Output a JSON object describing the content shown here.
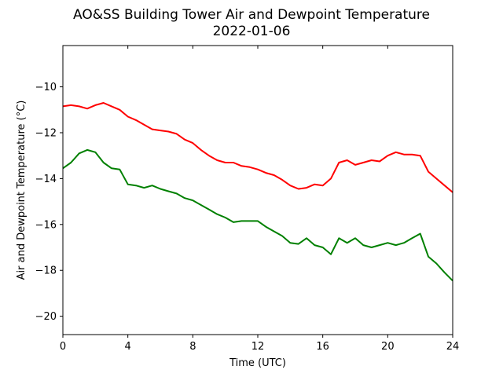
{
  "chart_data": {
    "type": "line",
    "title": "AO&SS Building Tower Air and Dewpoint Temperature",
    "subtitle": "2022-01-06",
    "xlabel": "Time (UTC)",
    "ylabel": "Air and Dewpoint Temperature (°C)",
    "xlim": [
      0,
      24
    ],
    "ylim": [
      -20.8,
      -8.2
    ],
    "xticks": [
      0,
      4,
      8,
      12,
      16,
      20,
      24
    ],
    "yticks": [
      -20,
      -18,
      -16,
      -14,
      -12,
      -10
    ],
    "grid": false,
    "legend": "none",
    "series": [
      {
        "color": "#ff0000",
        "x": [
          0,
          0.5,
          1.0,
          1.5,
          2.0,
          2.5,
          3.0,
          3.5,
          4.0,
          4.5,
          5.0,
          5.5,
          6.0,
          6.5,
          7.0,
          7.5,
          8.0,
          8.5,
          9.0,
          9.5,
          10.0,
          10.5,
          11.0,
          11.5,
          12.0,
          12.5,
          13.0,
          13.5,
          14.0,
          14.5,
          15.0,
          15.5,
          16.0,
          16.5,
          17.0,
          17.5,
          18.0,
          18.5,
          19.0,
          19.5,
          20.0,
          20.5,
          21.0,
          21.5,
          22.0,
          22.5,
          23.0,
          23.5,
          24.0
        ],
        "values": [
          -10.85,
          -10.8,
          -10.85,
          -10.95,
          -10.8,
          -10.7,
          -10.85,
          -11.0,
          -11.3,
          -11.45,
          -11.65,
          -11.85,
          -11.9,
          -11.95,
          -12.05,
          -12.3,
          -12.45,
          -12.75,
          -13.0,
          -13.2,
          -13.3,
          -13.3,
          -13.45,
          -13.5,
          -13.6,
          -13.75,
          -13.85,
          -14.05,
          -14.3,
          -14.45,
          -14.4,
          -14.25,
          -14.3,
          -14.0,
          -13.3,
          -13.2,
          -13.4,
          -13.3,
          -13.2,
          -13.25,
          -13.0,
          -12.85,
          -12.95,
          -12.95,
          -13.0,
          -13.7,
          -14.0,
          -14.3,
          -14.6
        ]
      },
      {
        "color": "#008000",
        "x": [
          0,
          0.5,
          1.0,
          1.5,
          2.0,
          2.5,
          3.0,
          3.5,
          4.0,
          4.5,
          5.0,
          5.5,
          6.0,
          6.5,
          7.0,
          7.5,
          8.0,
          8.5,
          9.0,
          9.5,
          10.0,
          10.5,
          11.0,
          11.5,
          12.0,
          12.5,
          13.0,
          13.5,
          14.0,
          14.5,
          15.0,
          15.5,
          16.0,
          16.5,
          17.0,
          17.5,
          18.0,
          18.5,
          19.0,
          19.5,
          20.0,
          20.5,
          21.0,
          21.5,
          22.0,
          22.5,
          23.0,
          23.5,
          24.0
        ],
        "values": [
          -13.55,
          -13.3,
          -12.9,
          -12.75,
          -12.85,
          -13.3,
          -13.55,
          -13.6,
          -14.25,
          -14.3,
          -14.4,
          -14.3,
          -14.45,
          -14.55,
          -14.65,
          -14.85,
          -14.95,
          -15.15,
          -15.35,
          -15.55,
          -15.7,
          -15.9,
          -15.85,
          -15.85,
          -15.85,
          -16.1,
          -16.3,
          -16.5,
          -16.8,
          -16.85,
          -16.6,
          -16.9,
          -17.0,
          -17.3,
          -16.6,
          -16.8,
          -16.6,
          -16.9,
          -17.0,
          -16.9,
          -16.8,
          -16.9,
          -16.8,
          -16.6,
          -16.4,
          -17.4,
          -17.7,
          -18.1,
          -18.45
        ]
      }
    ]
  }
}
